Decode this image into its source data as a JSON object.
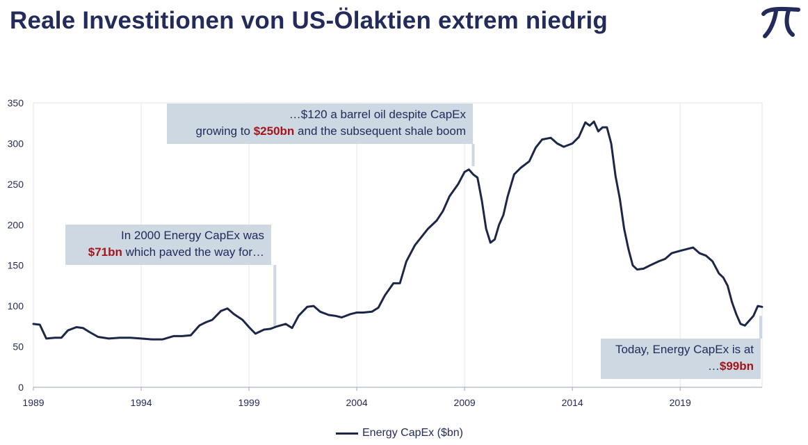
{
  "title": "Reale Investitionen von US-Ölaktien extrem niedrig",
  "colors": {
    "title": "#222b5a",
    "line": "#1c2748",
    "callout_bg": "#cdd8e3",
    "highlight": "#a3151b",
    "grid": "#e1e6ec",
    "axis_text": "#222b5a"
  },
  "logo": {
    "icon": "pi-logo-icon"
  },
  "callouts": {
    "c1": {
      "line1": "In 2000 Energy CapEx was",
      "value": "$71bn",
      "rest": " which paved the way for…"
    },
    "c2": {
      "line1": "…$120 a barrel oil despite CapEx",
      "pre": "growing to ",
      "value": "$250bn",
      "rest": " and the subsequent shale boom"
    },
    "c3": {
      "line1": "Today, Energy CapEx is at",
      "pre": "…",
      "value": "$99bn"
    }
  },
  "chart_data": {
    "type": "line",
    "xlabel": "",
    "ylabel": "",
    "xlim": [
      1989,
      2022.8
    ],
    "ylim": [
      0,
      350
    ],
    "x_ticks": [
      1989,
      1994,
      1999,
      2004,
      2009,
      2014,
      2019
    ],
    "y_ticks": [
      0,
      50,
      100,
      150,
      200,
      250,
      300,
      350
    ],
    "grid": "vertical",
    "legend": "bottom",
    "series": [
      {
        "name": "Energy CapEx ($bn)",
        "x": [
          1989.0,
          1989.3,
          1989.6,
          1990.0,
          1990.3,
          1990.6,
          1991.0,
          1991.3,
          1991.6,
          1992.0,
          1992.5,
          1993.0,
          1993.5,
          1994.0,
          1994.5,
          1995.0,
          1995.5,
          1995.9,
          1996.3,
          1996.7,
          1997.0,
          1997.3,
          1997.7,
          1998.0,
          1998.3,
          1998.7,
          1999.0,
          1999.3,
          1999.7,
          2000.0,
          2000.3,
          2000.7,
          2001.0,
          2001.3,
          2001.7,
          2002.0,
          2002.3,
          2002.7,
          2003.0,
          2003.3,
          2003.7,
          2004.0,
          2004.3,
          2004.7,
          2005.0,
          2005.3,
          2005.7,
          2006.0,
          2006.3,
          2006.7,
          2007.0,
          2007.3,
          2007.7,
          2008.0,
          2008.3,
          2008.7,
          2009.0,
          2009.2,
          2009.4,
          2009.6,
          2009.8,
          2010.0,
          2010.2,
          2010.4,
          2010.6,
          2010.8,
          2011.0,
          2011.3,
          2011.6,
          2012.0,
          2012.3,
          2012.6,
          2013.0,
          2013.3,
          2013.6,
          2014.0,
          2014.3,
          2014.6,
          2014.8,
          2015.0,
          2015.2,
          2015.4,
          2015.6,
          2015.8,
          2016.0,
          2016.2,
          2016.4,
          2016.6,
          2016.8,
          2017.0,
          2017.3,
          2017.6,
          2018.0,
          2018.3,
          2018.6,
          2019.0,
          2019.3,
          2019.6,
          2019.9,
          2020.2,
          2020.5,
          2020.8,
          2021.0,
          2021.2,
          2021.4,
          2021.6,
          2021.8,
          2022.0,
          2022.2,
          2022.4,
          2022.6,
          2022.8
        ],
        "values": [
          78,
          77,
          60,
          61,
          61,
          70,
          74,
          73,
          68,
          62,
          60,
          61,
          61,
          60,
          59,
          59,
          63,
          63,
          64,
          76,
          80,
          83,
          94,
          97,
          90,
          83,
          74,
          66,
          71,
          72,
          75,
          78,
          73,
          88,
          99,
          100,
          93,
          89,
          88,
          86,
          90,
          92,
          92,
          93,
          98,
          113,
          128,
          128,
          155,
          175,
          185,
          195,
          205,
          217,
          235,
          250,
          265,
          268,
          262,
          258,
          230,
          195,
          178,
          182,
          200,
          212,
          235,
          262,
          270,
          278,
          295,
          305,
          307,
          300,
          296,
          300,
          308,
          326,
          322,
          327,
          315,
          320,
          320,
          300,
          260,
          232,
          195,
          170,
          150,
          145,
          146,
          150,
          155,
          158,
          165,
          168,
          170,
          172,
          165,
          162,
          155,
          140,
          135,
          125,
          105,
          90,
          78,
          76,
          82,
          88,
          100,
          99
        ]
      }
    ]
  }
}
